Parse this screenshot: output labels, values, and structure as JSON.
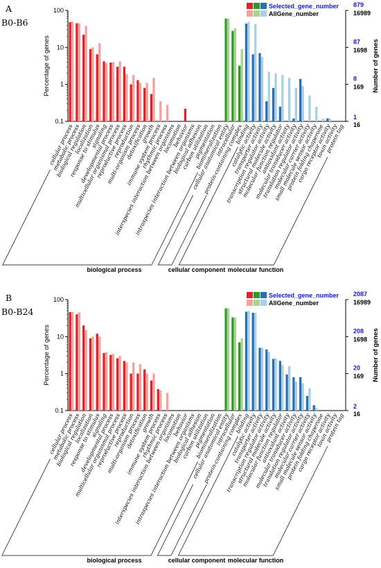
{
  "colors": {
    "bp_selected": "#e0232b",
    "bp_all": "#f3a29c",
    "cc_selected": "#2f9a29",
    "cc_all": "#a8d58c",
    "mf_selected": "#2a6fb3",
    "mf_all": "#a9cfe6",
    "selected_tick_text": "#1515e0",
    "all_tick_text": "#000000"
  },
  "categories": [
    "cellular process",
    "metabolic process",
    "biological regulation",
    "localization",
    "response to stimulus",
    "signaling",
    "developmental process",
    "multicellular organismal process",
    "reproductive process",
    "reproduction",
    "multi-organism process",
    "detoxification",
    "growth",
    "immune system process",
    "rhythmic process",
    "interspecies interaction between organisms",
    "locomotion",
    "behavior",
    "intraspecies interaction between organisms",
    "biological adhesion",
    "carbon utilization",
    "pigmentation",
    "biomineralization",
    "cellular anatomical entity",
    "intracellular",
    "protein-containing complex",
    "binding",
    "catalytic activity",
    "transporter activity",
    "transcription regulator activity",
    "structural molecule activity",
    "molecular function regulator",
    "antioxidant activity",
    "molecular transducer activity",
    "translation regulator activity",
    "molecular carrier activity",
    "small molecule sensor activity",
    "protein folding chaperone",
    "cargo receptor activity",
    "toxin activity",
    "protein tag"
  ],
  "groups": [
    {
      "name": "biological process",
      "start": 0,
      "end": 22,
      "color_key": "bp"
    },
    {
      "name": "cellular component",
      "start": 23,
      "end": 25,
      "color_key": "cc"
    },
    {
      "name": "molecular function",
      "start": 26,
      "end": 40,
      "color_key": "mf"
    }
  ],
  "chart_data": [
    {
      "type": "bar",
      "panel_label": "A",
      "title": "B0-B6",
      "ylabel": "Percentage of genes",
      "y2label": "Number of genes",
      "yscale": "log",
      "ylim": [
        0.1,
        100
      ],
      "yticks": [
        "100",
        "10",
        "1",
        "0.1"
      ],
      "right_ticks": {
        "selected": [
          "879",
          "87",
          "8",
          "1"
        ],
        "all": [
          "16989",
          "1698",
          "169",
          "16"
        ]
      },
      "legend": [
        "Selected_gene_number",
        "AllGene_number"
      ],
      "series": [
        {
          "name": "Selected_gene_number",
          "values": [
            48,
            45,
            22,
            9,
            6.5,
            4.2,
            3.9,
            3,
            3,
            1,
            1.3,
            0.8,
            0.55,
            0,
            0,
            0,
            0,
            0.22,
            0,
            0,
            0,
            0,
            0,
            60,
            28,
            3.2,
            44,
            6.5,
            7,
            0.35,
            0.8,
            0.25,
            0,
            0.12,
            1.4,
            0,
            0,
            0,
            0.12,
            0,
            0
          ]
        },
        {
          "name": "AllGene_number",
          "values": [
            50,
            45,
            38,
            10,
            13,
            3.8,
            4,
            4.2,
            1.9,
            1.8,
            1.1,
            1.1,
            1.5,
            0.35,
            0.28,
            0,
            0,
            0,
            0,
            0,
            0,
            0,
            0,
            60,
            33,
            9,
            49,
            43,
            5.5,
            2.2,
            2,
            1.8,
            1.5,
            0.8,
            0.9,
            0.5,
            0.25,
            0.12,
            0.12,
            0,
            0
          ]
        }
      ]
    },
    {
      "type": "bar",
      "panel_label": "B",
      "title": "B0-B24",
      "ylabel": "Percentage of genes",
      "y2label": "Number of genes",
      "yscale": "log",
      "ylim": [
        0.1,
        100
      ],
      "yticks": [
        "100",
        "10",
        "1",
        "0.1"
      ],
      "right_ticks": {
        "selected": [
          "2087",
          "208",
          "20",
          "2"
        ],
        "all": [
          "16989",
          "1698",
          "169",
          "16"
        ]
      },
      "legend": [
        "Selected_gene_number",
        "AllGene_number"
      ],
      "series": [
        {
          "name": "Selected_gene_number",
          "values": [
            46,
            40,
            20,
            9,
            12,
            3.6,
            3.2,
            2.6,
            2.2,
            1,
            1,
            1.3,
            0.65,
            0.38,
            0,
            0,
            0,
            0,
            0,
            0,
            0,
            0,
            0,
            58,
            33,
            7,
            47,
            44,
            5,
            4.5,
            2.5,
            2.2,
            0.95,
            0.8,
            0.8,
            0.25,
            0.14,
            0,
            0,
            0,
            0
          ]
        },
        {
          "name": "AllGene_number",
          "values": [
            46,
            45,
            15,
            10,
            10,
            3.8,
            3.4,
            3,
            2,
            2,
            1.8,
            1,
            1,
            0.35,
            0.3,
            0,
            0,
            0,
            0,
            0,
            0,
            0,
            0,
            58,
            33,
            9,
            49,
            44,
            5,
            3.8,
            2.6,
            1.7,
            1.6,
            0.6,
            0.55,
            0.4,
            0.12,
            0.1,
            0,
            0,
            0
          ]
        }
      ]
    }
  ]
}
